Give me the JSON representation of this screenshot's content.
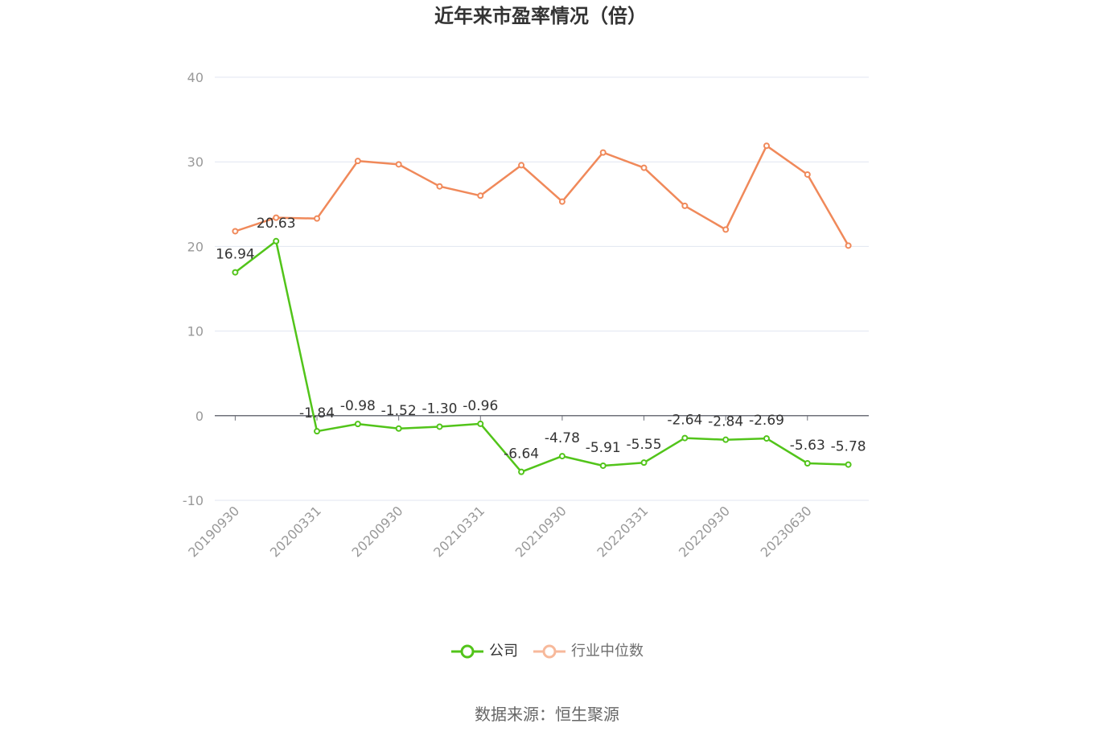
{
  "source": "数据来源：恒生聚源",
  "chart_data": {
    "type": "line",
    "title": "近年来市盈率情况（倍）",
    "categories": [
      "20190930",
      "",
      "20200331",
      "",
      "20200930",
      "",
      "20210331",
      "",
      "20210930",
      "",
      "20220331",
      "",
      "20220930",
      "",
      "20230630",
      ""
    ],
    "series": [
      {
        "name": "行业中位数",
        "color": "#f0895a",
        "legend_color": "#f7b99b",
        "show_labels": false,
        "values": [
          21.8,
          23.4,
          23.3,
          30.1,
          29.7,
          27.1,
          26.0,
          29.6,
          25.3,
          31.1,
          29.3,
          24.8,
          22.0,
          31.9,
          28.5,
          20.1
        ]
      },
      {
        "name": "公司",
        "color": "#52c41a",
        "legend_color": "#52c41a",
        "show_labels": true,
        "values": [
          16.94,
          20.63,
          -1.84,
          -0.98,
          -1.52,
          -1.3,
          -0.96,
          -6.64,
          -4.78,
          -5.91,
          -5.55,
          -2.64,
          -2.84,
          -2.69,
          -5.63,
          -5.78
        ]
      }
    ],
    "y_ticks": [
      -10,
      0,
      10,
      20,
      30,
      40
    ],
    "ylim": [
      -10,
      40
    ],
    "xlabel": "",
    "ylabel": "",
    "grid": true,
    "legend_position": "bottom-center"
  }
}
